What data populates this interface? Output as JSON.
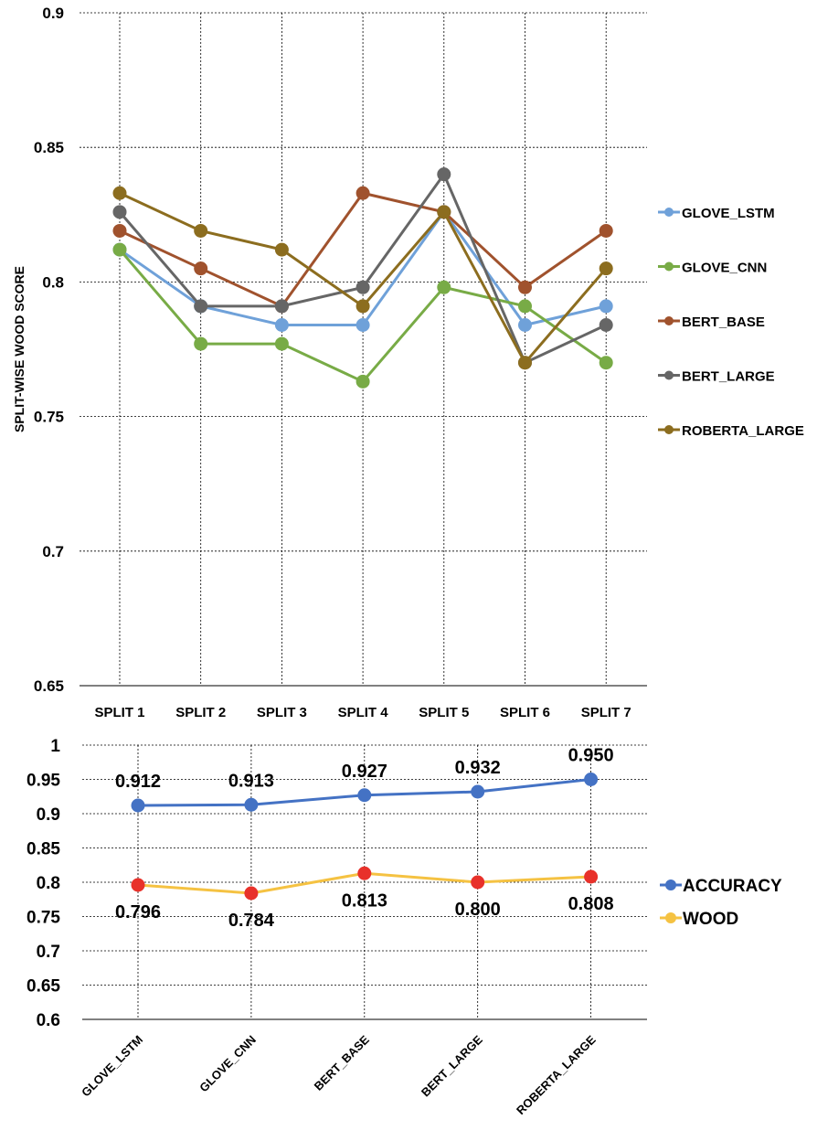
{
  "chart_data": [
    {
      "type": "line",
      "title": "",
      "ylabel": "SPLIT-WISE WOOD SCORE",
      "xlabel": "",
      "categories": [
        "SPLIT 1",
        "SPLIT 2",
        "SPLIT 3",
        "SPLIT 4",
        "SPLIT 5",
        "SPLIT 6",
        "SPLIT 7"
      ],
      "ylim": [
        0.65,
        0.9
      ],
      "yticks": [
        0.65,
        0.7,
        0.75,
        0.8,
        0.85,
        0.9
      ],
      "ytick_labels": [
        "0.65",
        "0.7",
        "0.75",
        "0.8",
        "0.85",
        "0.9"
      ],
      "grid": "dotted horizontal and vertical",
      "legend_position": "right",
      "series": [
        {
          "name": "GLOVE_LSTM",
          "color": "#6fa1d9",
          "values": [
            0.812,
            0.791,
            0.784,
            0.784,
            0.826,
            0.784,
            0.791
          ]
        },
        {
          "name": "GLOVE_CNN",
          "color": "#78ab46",
          "values": [
            0.812,
            0.777,
            0.777,
            0.763,
            0.798,
            0.791,
            0.77
          ]
        },
        {
          "name": "BERT_BASE",
          "color": "#a0522d",
          "values": [
            0.819,
            0.805,
            0.791,
            0.833,
            0.826,
            0.798,
            0.819
          ]
        },
        {
          "name": "BERT_LARGE",
          "color": "#666666",
          "values": [
            0.826,
            0.791,
            0.791,
            0.798,
            0.84,
            0.77,
            0.784
          ]
        },
        {
          "name": "ROBERTA_LARGE",
          "color": "#8c6d1f",
          "values": [
            0.833,
            0.819,
            0.812,
            0.791,
            0.826,
            0.77,
            0.805
          ]
        }
      ]
    },
    {
      "type": "line",
      "title": "",
      "xlabel": "",
      "ylabel": "",
      "categories": [
        "GLOVE_LSTM",
        "GLOVE_CNN",
        "BERT_BASE",
        "BERT_LARGE",
        "ROBERTA_LARGE"
      ],
      "ylim": [
        0.6,
        1.0
      ],
      "yticks": [
        0.6,
        0.65,
        0.7,
        0.75,
        0.8,
        0.85,
        0.9,
        0.95,
        1.0
      ],
      "ytick_labels": [
        "0.6",
        "0.65",
        "0.7",
        "0.75",
        "0.8",
        "0.85",
        "0.9",
        "0.95",
        "1"
      ],
      "grid": "dotted horizontal and vertical",
      "legend_position": "right",
      "series": [
        {
          "name": "ACCURACY",
          "line_color": "#4472c4",
          "marker_color": "#4472c4",
          "values": [
            0.912,
            0.913,
            0.927,
            0.932,
            0.95
          ],
          "data_labels": [
            "0.912",
            "0.913",
            "0.927",
            "0.932",
            "0.950"
          ],
          "label_side": "above"
        },
        {
          "name": "WOOD",
          "line_color": "#f5c242",
          "marker_color": "#e8312a",
          "values": [
            0.796,
            0.784,
            0.813,
            0.8,
            0.808
          ],
          "data_labels": [
            "0.796",
            "0.784",
            "0.813",
            "0.800",
            "0.808"
          ],
          "label_side": "below"
        }
      ]
    }
  ]
}
